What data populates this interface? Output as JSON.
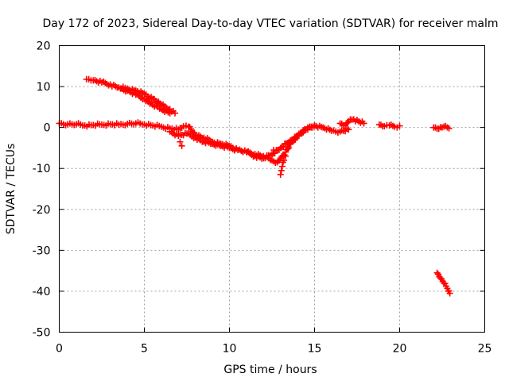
{
  "chart_data": {
    "type": "scatter",
    "title": "Day 172 of 2023, Sidereal Day-to-day VTEC variation (SDTVAR) for receiver malm",
    "xlabel": "GPS time / hours",
    "ylabel": "SDTVAR / TECUs",
    "xlim": [
      0,
      25
    ],
    "ylim": [
      -50,
      20
    ],
    "xticks": [
      0,
      5,
      10,
      15,
      20,
      25
    ],
    "yticks": [
      -50,
      -40,
      -30,
      -20,
      -10,
      0,
      10,
      20
    ],
    "grid": true,
    "marker": "plus",
    "color": "#ff0000",
    "series": [
      {
        "name": "track-main",
        "x": [
          0.0,
          0.5,
          1.0,
          1.5,
          2.0,
          2.5,
          3.0,
          3.5,
          4.0,
          4.5,
          5.0,
          5.5,
          6.0,
          6.5,
          7.0,
          7.3,
          7.6,
          8.0,
          8.5,
          9.0,
          9.5,
          10.0,
          10.5,
          11.0,
          11.5,
          12.0,
          12.5,
          12.8,
          13.0,
          13.3,
          13.6,
          14.0,
          14.5,
          15.0,
          15.5,
          16.0,
          16.5,
          17.0
        ],
        "y": [
          1.0,
          0.8,
          0.8,
          0.5,
          0.6,
          0.7,
          0.8,
          0.7,
          0.9,
          1.0,
          0.8,
          0.5,
          0.2,
          -0.2,
          -0.5,
          0.3,
          0.2,
          -1.8,
          -2.5,
          -3.5,
          -4.0,
          -4.5,
          -5.5,
          -6.0,
          -6.5,
          -7.0,
          -8.0,
          -8.5,
          -7.5,
          -6.0,
          -4.0,
          -2.0,
          -0.5,
          0.5,
          0.0,
          -0.8,
          -1.0,
          -0.5
        ]
      },
      {
        "name": "track-second",
        "x": [
          6.5,
          7.0,
          7.5,
          8.0,
          8.5,
          9.0,
          9.5,
          10.0,
          10.5,
          11.0,
          11.5,
          12.0,
          12.5,
          13.0,
          13.5,
          14.0,
          14.5,
          15.0
        ],
        "y": [
          -1.0,
          -2.0,
          -1.5,
          -2.5,
          -3.5,
          -4.0,
          -4.5,
          -5.0,
          -5.5,
          -6.0,
          -7.0,
          -7.5,
          -6.5,
          -5.0,
          -3.5,
          -2.0,
          -0.5,
          0.5
        ]
      },
      {
        "name": "dropout-dips",
        "x": [
          7.1,
          7.2,
          12.6,
          13.0,
          13.05,
          13.1,
          13.15,
          13.2,
          13.3
        ],
        "y": [
          -3.5,
          -4.5,
          -5.5,
          -11.5,
          -10.5,
          -9.5,
          -8.5,
          -8.0,
          -7.0
        ]
      },
      {
        "name": "descending-arc-upper",
        "x": [
          1.6,
          2.0,
          2.5,
          3.0,
          3.5,
          4.0,
          4.5,
          5.0,
          5.5,
          6.0,
          6.5,
          6.8
        ],
        "y": [
          11.8,
          11.5,
          11.0,
          10.5,
          9.8,
          9.5,
          9.0,
          8.2,
          7.0,
          5.5,
          4.5,
          3.5
        ]
      },
      {
        "name": "descending-arc-lower",
        "x": [
          3.6,
          4.0,
          4.5,
          5.0,
          5.5,
          6.0,
          6.5
        ],
        "y": [
          9.5,
          9.0,
          8.0,
          7.0,
          5.5,
          4.5,
          3.5
        ]
      },
      {
        "name": "segment-17h",
        "x": [
          16.5,
          16.8,
          17.0,
          17.3,
          17.6,
          17.9
        ],
        "y": [
          1.0,
          0.5,
          1.5,
          2.0,
          1.5,
          1.0
        ]
      },
      {
        "name": "segment-19h",
        "x": [
          18.8,
          19.1,
          19.4,
          19.7,
          20.0
        ],
        "y": [
          0.7,
          0.3,
          0.5,
          0.2,
          0.4
        ]
      },
      {
        "name": "segment-22h",
        "x": [
          22.0,
          22.3,
          22.6,
          22.9
        ],
        "y": [
          0.0,
          -0.3,
          0.2,
          -0.2
        ]
      },
      {
        "name": "segment-22h-drop",
        "x": [
          22.2,
          22.4,
          22.6,
          22.8,
          22.95
        ],
        "y": [
          -35.5,
          -36.8,
          -38.0,
          -39.3,
          -40.5
        ]
      }
    ]
  }
}
